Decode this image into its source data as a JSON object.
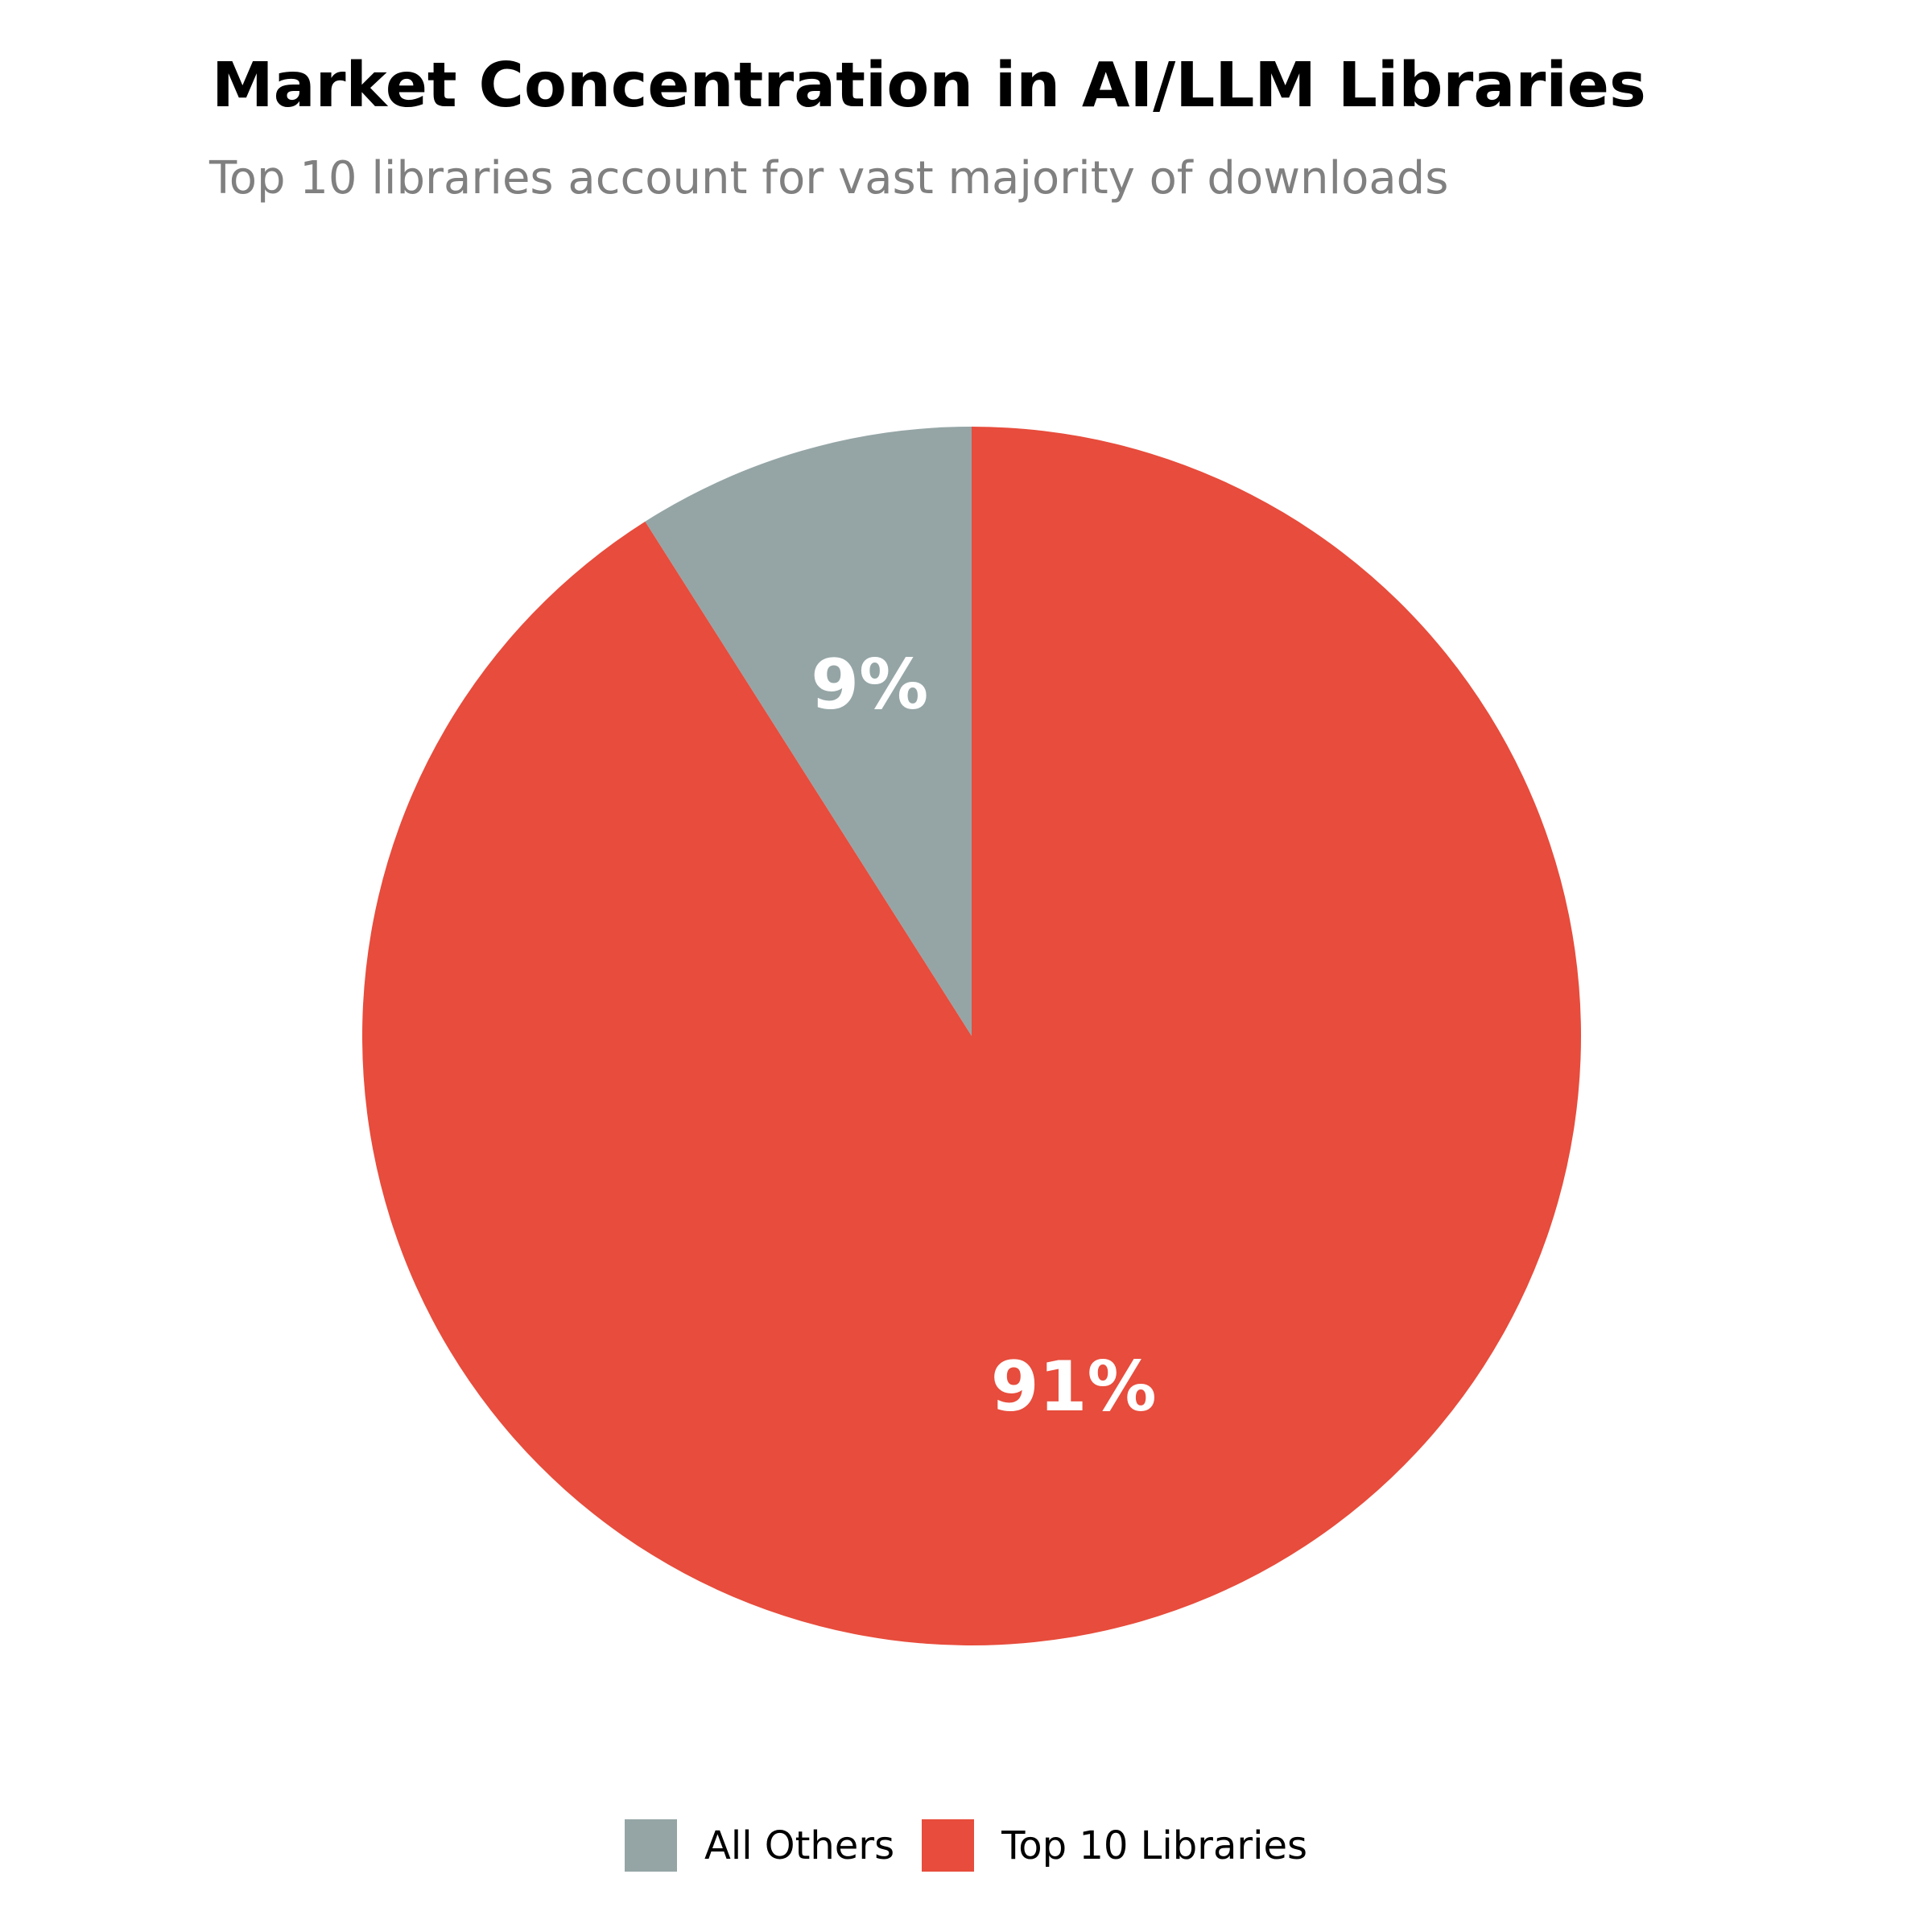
{
  "chart_data": {
    "type": "pie",
    "title": "Market Concentration in AI/LLM Libraries",
    "subtitle": "Top 10 libraries account for vast majority of downloads",
    "slices": [
      {
        "name": "All Others",
        "value": 9,
        "label": "9%",
        "color": "#95a5a6"
      },
      {
        "name": "Top 10 Libraries",
        "value": 91,
        "label": "91%",
        "color": "#e74c3c"
      }
    ],
    "start_angle": "top",
    "direction": "counterclockwise",
    "legend_placement": "bottom-center"
  }
}
